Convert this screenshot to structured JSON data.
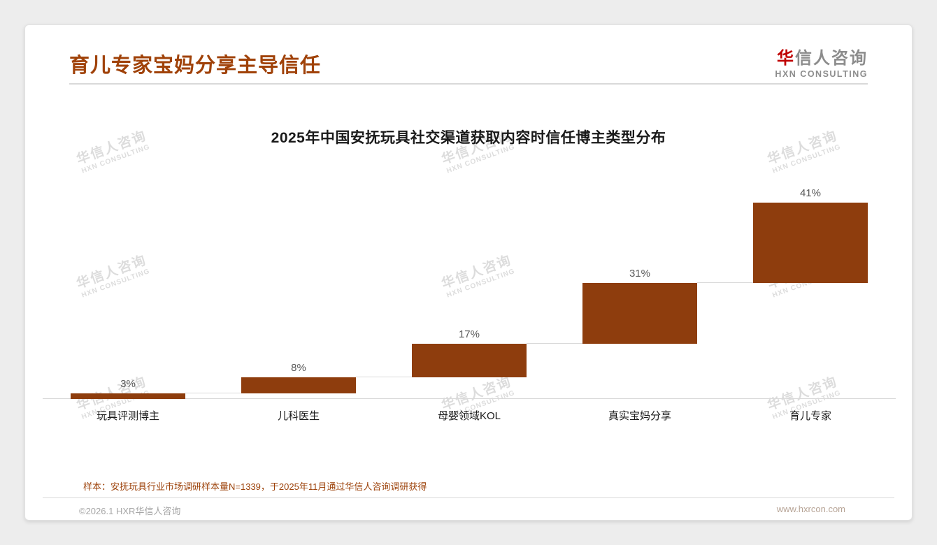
{
  "page": {
    "title": "育儿专家宝妈分享主导信任",
    "logo": {
      "cn_red": "华",
      "cn_gray": "信人咨询",
      "en": "HXN CONSULTING"
    },
    "watermark": {
      "line1": "华信人咨询",
      "line2": "HXN CONSULTING"
    },
    "note": "样本：安抚玩具行业市场调研样本量N=1339，于2025年11月通过华信人咨询调研获得",
    "footer": {
      "left": "©2026.1 HXR华信人咨询",
      "right": "www.hxrcon.com"
    }
  },
  "colors": {
    "accent": "#A04209",
    "bar": "#8E3D0D",
    "value_label": "#595959",
    "axis_line": "#d9d9d9",
    "note": "#9C4109"
  },
  "chart_data": {
    "type": "bar",
    "subtype": "waterfall",
    "title": "2025年中国安抚玩具社交渠道获取内容时信任博主类型分布",
    "categories": [
      "玩具评测博主",
      "儿科医生",
      "母婴领域KOL",
      "真实宝妈分享",
      "育儿专家"
    ],
    "values": [
      3,
      8,
      17,
      31,
      41
    ],
    "value_labels": [
      "3%",
      "8%",
      "17%",
      "31%",
      "41%"
    ],
    "cumulative": [
      3,
      11,
      28,
      59,
      100
    ],
    "xlabel": "",
    "ylabel": "",
    "ylim": [
      0,
      100
    ],
    "grid": false,
    "legend": false,
    "bar_color": "#8E3D0D"
  }
}
